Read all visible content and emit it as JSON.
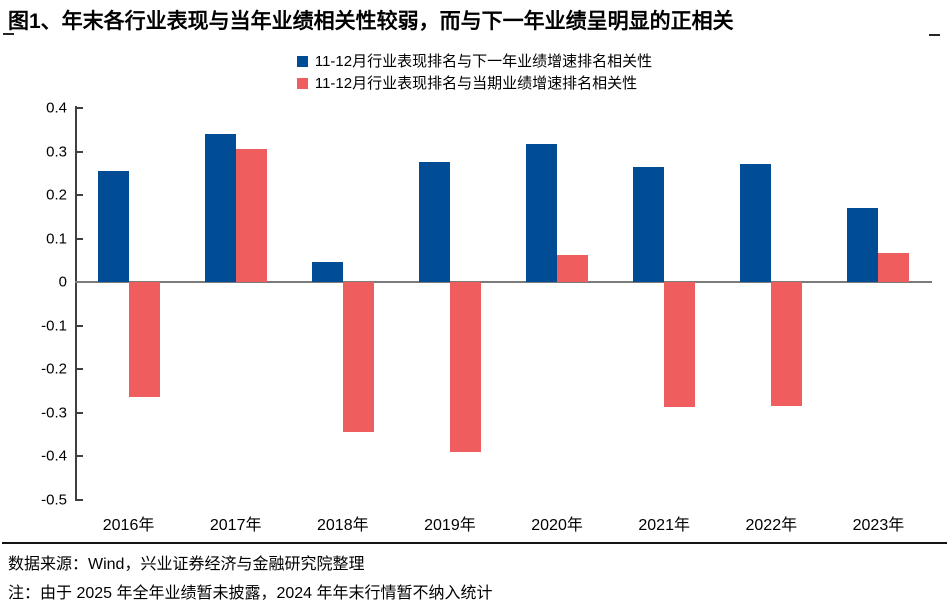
{
  "title": "图1、年末各行业表现与当年业绩相关性较弱，而与下一年业绩呈明显的正相关",
  "chart_data": {
    "type": "bar",
    "title": "图1、年末各行业表现与当年业绩相关性较弱，而与下一年业绩呈明显的正相关",
    "categories": [
      "2016年",
      "2017年",
      "2018年",
      "2019年",
      "2020年",
      "2021年",
      "2022年",
      "2023年"
    ],
    "series": [
      {
        "name": "11-12月行业表现排名与下一年业绩增速排名相关性",
        "color": "#004D96",
        "values": [
          0.255,
          0.34,
          0.045,
          0.277,
          0.318,
          0.265,
          0.272,
          0.171
        ]
      },
      {
        "name": "11-12月行业表现排名与当期业绩增速排名相关性",
        "color": "#F05D5F",
        "values": [
          -0.265,
          0.305,
          -0.345,
          -0.39,
          0.062,
          -0.287,
          -0.285,
          0.066
        ]
      }
    ],
    "xlabel": "",
    "ylabel": "",
    "ylim": [
      -0.5,
      0.4
    ],
    "yticks": [
      0.4,
      0.3,
      0.2,
      0.1,
      0,
      -0.1,
      -0.2,
      -0.3,
      -0.4,
      -0.5
    ],
    "grid": false,
    "legend_position": "top-center"
  },
  "colors": {
    "blue": "#004D96",
    "red": "#F05D5F",
    "axis": "#404040",
    "zero_line": "#7B7B7B",
    "separator": "#141414"
  },
  "footer": {
    "source": "数据来源：Wind，兴业证券经济与金融研究院整理",
    "note": "注：由于 2025 年全年业绩暂未披露，2024 年年末行情暂不纳入统计"
  }
}
